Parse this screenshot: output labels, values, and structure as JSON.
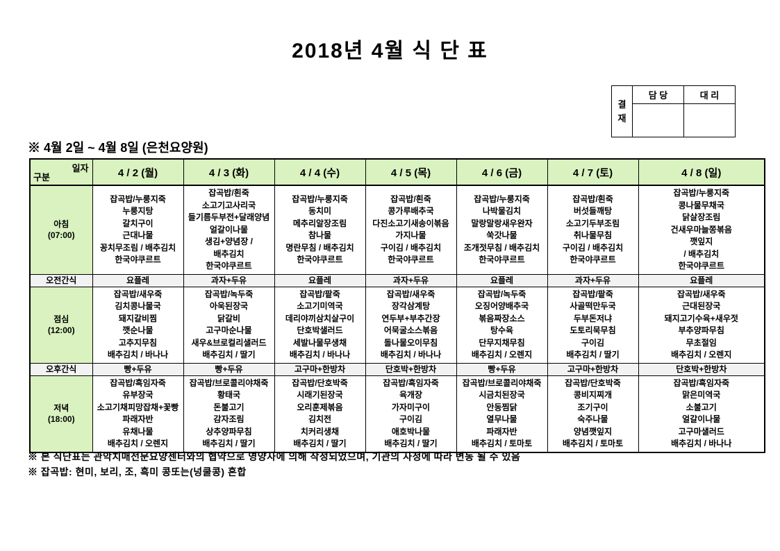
{
  "title": "2018년 4월 식 단 표",
  "approval_box": {
    "label": "결재",
    "columns": [
      "담 당",
      "대 리"
    ]
  },
  "subtitle": "※ 4월 2일 ~ 4월 8일 (은천요양원)",
  "table": {
    "corner": {
      "top": "일자",
      "bottom": "구분"
    },
    "days": [
      "4 / 2 (월)",
      "4 / 3 (화)",
      "4 / 4 (수)",
      "4 / 5 (목)",
      "4 / 6 (금)",
      "4 / 7 (토)",
      "4 / 8 (일)"
    ],
    "rows": [
      {
        "id": "breakfast",
        "label": "아침",
        "time": "(07:00)",
        "type": "meal",
        "cells": [
          [
            "잡곡밥/누룽지죽",
            "누룽지탕",
            "갈치구이",
            "근대나물",
            "꽁치무조림 / 배추김치",
            "한국야쿠르트"
          ],
          [
            "잡곡밥/흰죽",
            "소고기고사리국",
            "들기름두부전+달래양념",
            "얼갈이나물",
            "생김+양념장 /",
            "배추김치",
            "한국야쿠르트"
          ],
          [
            "잡곡밥/누룽지죽",
            "동치미",
            "메추리알장조림",
            "참나물",
            "명란무침 / 배추김치",
            "한국야쿠르트"
          ],
          [
            "잡곡밥/흰죽",
            "콩가루배추국",
            "다진소고기새송이볶음",
            "가지나물",
            "구이김 / 배추김치",
            "한국야쿠르트"
          ],
          [
            "잡곡밥/누룽지죽",
            "나박물김치",
            "말랑말랑새우완자",
            "쑥갓나물",
            "조개젓무침 / 배추김치",
            "한국야쿠르트"
          ],
          [
            "잡곡밥/흰죽",
            "버섯들깨탕",
            "소고기두부조림",
            "취나물무침",
            "구이김 / 배추김치",
            "한국야쿠르트"
          ],
          [
            "잡곡밥/누룽지죽",
            "콩나물무채국",
            "닭살장조림",
            "건새우마늘쫑볶음",
            "깻잎지",
            "/ 배추김치",
            "한국야쿠르트"
          ]
        ]
      },
      {
        "id": "am-snack",
        "label": "오전간식",
        "type": "snack",
        "cells": [
          "요플레",
          "과자+두유",
          "요플레",
          "과자+두유",
          "요플레",
          "과자+두유",
          "요플레"
        ]
      },
      {
        "id": "lunch",
        "label": "점심",
        "time": "(12:00)",
        "type": "meal",
        "cells": [
          [
            "잡곡밥/새우죽",
            "김치콩나물국",
            "돼지갈비찜",
            "깻순나물",
            "고추지무침",
            "배추김치 / 바나나"
          ],
          [
            "잡곡밥/녹두죽",
            "아욱된장국",
            "닭갈비",
            "고구마순나물",
            "새우&브로컬리샐러드",
            "배추김치 / 딸기"
          ],
          [
            "잡곡밥/팥죽",
            "소고기미역국",
            "데리야끼삼치살구이",
            "단호박샐러드",
            "세발나물무생채",
            "배추김치 / 바나나"
          ],
          [
            "잡곡밥/새우죽",
            "장각삼계탕",
            "연두부+부추간장",
            "어묵굴소스볶음",
            "돌나물오이무침",
            "배추김치 / 바나나"
          ],
          [
            "잡곡밥/녹두죽",
            "오징어양배추국",
            "볶음짜장소스",
            "탕수육",
            "단무지채무침",
            "배추김치 / 오렌지"
          ],
          [
            "잡곡밥/팥죽",
            "사골떡만두국",
            "두부돈저냐",
            "도토리묵무침",
            "구이김",
            "배추김치 / 딸기"
          ],
          [
            "잡곡밥/새우죽",
            "근대된장국",
            "돼지고기수육+새우젓",
            "부추양파무침",
            "무초절임",
            "배추김치 / 오렌지"
          ]
        ]
      },
      {
        "id": "pm-snack",
        "label": "오후간식",
        "type": "snack",
        "cells": [
          "빵+두유",
          "빵+두유",
          "고구마+한방차",
          "단호박+한방차",
          "빵+두유",
          "고구마+한방차",
          "단호박+한방차"
        ]
      },
      {
        "id": "dinner",
        "label": "저녁",
        "time": "(18:00)",
        "type": "meal",
        "cells": [
          [
            "잡곡밥/흑임자죽",
            "유부장국",
            "소고기채피망잡채+꽃빵",
            "파래자반",
            "유채나물",
            "배추김치 / 오렌지"
          ],
          [
            "잡곡밥/브로콜리야채죽",
            "황태국",
            "돈불고기",
            "감자조림",
            "상추양파무침",
            "배추김치 / 딸기"
          ],
          [
            "잡곡밥/단호박죽",
            "시래기된장국",
            "오리훈제볶음",
            "김치전",
            "치커리생채",
            "배추김치 / 딸기"
          ],
          [
            "잡곡밥/흑임자죽",
            "육개장",
            "가자미구이",
            "구이김",
            "애호박나물",
            "배추김치 / 딸기"
          ],
          [
            "잡곡밥/브로콜리야채죽",
            "시금치된장국",
            "안동찜닭",
            "열무나물",
            "파래자반",
            "배추김치 / 토마토"
          ],
          [
            "잡곡밥/단호박죽",
            "콩비지찌개",
            "조기구이",
            "숙주나물",
            "양념깻잎지",
            "배추김치 / 토마토"
          ],
          [
            "잡곡밥/흑임자죽",
            "맑은미역국",
            "소불고기",
            "얼갈이나물",
            "고구마샐러드",
            "배추김치 / 바나나"
          ]
        ]
      }
    ]
  },
  "notes": [
    "※ 본 식단표는 관악치매전문요양센터와의 협약으로 영양사에 의해 작성되었으며, 기관의 사정에 따라 변동 될 수 있음",
    "※ 잡곡밥: 현미, 보리, 조, 흑미 콩또는(넝쿨콩) 혼합"
  ],
  "colors": {
    "header_green": "#d9f2bf",
    "snack_gray": "#f2f2f2",
    "border": "#000000"
  }
}
